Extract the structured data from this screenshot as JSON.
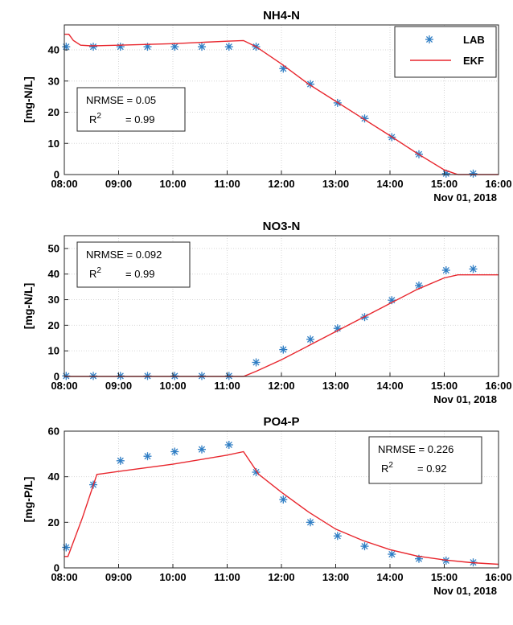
{
  "chart_data": [
    {
      "type": "line",
      "title": "NH4-N",
      "ylabel": "[mg-N/L]",
      "date_label": "Nov 01, 2018",
      "xlim": [
        "08:00",
        "16:00"
      ],
      "ylim": [
        0,
        48
      ],
      "x_ticks": [
        "08:00",
        "09:00",
        "10:00",
        "11:00",
        "12:00",
        "13:00",
        "14:00",
        "15:00",
        "16:00"
      ],
      "y_ticks": [
        "0",
        "10",
        "20",
        "30",
        "40"
      ],
      "grid": true,
      "legend": {
        "position": "top-right",
        "entries": [
          "LAB",
          "EKF"
        ]
      },
      "stats": {
        "nrmse": "NRMSE = 0.05",
        "r2_label": "R",
        "r2_sup": "2",
        "r2_value": "= 0.99"
      },
      "series": [
        {
          "name": "LAB",
          "style": "markers",
          "color": "#2e7dc4",
          "points": [
            [
              "08:02",
              41
            ],
            [
              "08:32",
              41
            ],
            [
              "09:02",
              41
            ],
            [
              "09:32",
              41
            ],
            [
              "10:02",
              41
            ],
            [
              "10:32",
              41
            ],
            [
              "11:02",
              41
            ],
            [
              "11:32",
              41
            ],
            [
              "12:02",
              34
            ],
            [
              "12:32",
              29
            ],
            [
              "13:02",
              23
            ],
            [
              "13:32",
              18
            ],
            [
              "14:02",
              12
            ],
            [
              "14:32",
              6.5
            ],
            [
              "15:02",
              0.3
            ],
            [
              "15:32",
              0.3
            ]
          ]
        },
        {
          "name": "EKF",
          "style": "line",
          "color": "#e8262d",
          "points": [
            [
              "08:00",
              45
            ],
            [
              "08:05",
              45
            ],
            [
              "08:10",
              43
            ],
            [
              "08:18",
              41.5
            ],
            [
              "08:30",
              41.3
            ],
            [
              "09:00",
              41.5
            ],
            [
              "10:00",
              42
            ],
            [
              "11:00",
              42.8
            ],
            [
              "11:18",
              43
            ],
            [
              "11:32",
              41
            ],
            [
              "12:00",
              35.5
            ],
            [
              "12:30",
              29
            ],
            [
              "13:00",
              23.5
            ],
            [
              "13:30",
              18
            ],
            [
              "14:00",
              12.5
            ],
            [
              "14:30",
              6.8
            ],
            [
              "15:00",
              1.5
            ],
            [
              "15:15",
              0
            ],
            [
              "16:00",
              0
            ]
          ]
        }
      ]
    },
    {
      "type": "line",
      "title": "NO3-N",
      "ylabel": "[mg-N/L]",
      "date_label": "Nov 01, 2018",
      "xlim": [
        "08:00",
        "16:00"
      ],
      "ylim": [
        0,
        55
      ],
      "x_ticks": [
        "08:00",
        "09:00",
        "10:00",
        "11:00",
        "12:00",
        "13:00",
        "14:00",
        "15:00",
        "16:00"
      ],
      "y_ticks": [
        "0",
        "10",
        "20",
        "30",
        "40",
        "50"
      ],
      "grid": true,
      "stats": {
        "nrmse": "NRMSE = 0.092",
        "r2_label": "R",
        "r2_sup": "2",
        "r2_value": "= 0.99"
      },
      "series": [
        {
          "name": "LAB",
          "style": "markers",
          "color": "#2e7dc4",
          "points": [
            [
              "08:02",
              0.2
            ],
            [
              "08:32",
              0.2
            ],
            [
              "09:02",
              0.2
            ],
            [
              "09:32",
              0.2
            ],
            [
              "10:02",
              0.2
            ],
            [
              "10:32",
              0.2
            ],
            [
              "11:02",
              0.2
            ],
            [
              "11:32",
              5.5
            ],
            [
              "12:02",
              10.5
            ],
            [
              "12:32",
              14.5
            ],
            [
              "13:02",
              18.8
            ],
            [
              "13:32",
              23.2
            ],
            [
              "14:02",
              29.8
            ],
            [
              "14:32",
              35.5
            ],
            [
              "15:02",
              41.5
            ],
            [
              "15:32",
              42
            ]
          ]
        },
        {
          "name": "EKF",
          "style": "line",
          "color": "#e8262d",
          "points": [
            [
              "08:00",
              0
            ],
            [
              "11:18",
              0
            ],
            [
              "11:32",
              2
            ],
            [
              "12:00",
              6.5
            ],
            [
              "12:30",
              12
            ],
            [
              "13:00",
              17.5
            ],
            [
              "13:30",
              23
            ],
            [
              "14:00",
              28.5
            ],
            [
              "14:30",
              34
            ],
            [
              "15:00",
              38.5
            ],
            [
              "15:15",
              39.7
            ],
            [
              "16:00",
              39.7
            ]
          ]
        }
      ]
    },
    {
      "type": "line",
      "title": "PO4-P",
      "ylabel": "[mg-P/L]",
      "date_label": "Nov 01, 2018",
      "xlim": [
        "08:00",
        "16:00"
      ],
      "ylim": [
        0,
        60
      ],
      "x_ticks": [
        "08:00",
        "09:00",
        "10:00",
        "11:00",
        "12:00",
        "13:00",
        "14:00",
        "15:00",
        "16:00"
      ],
      "y_ticks": [
        "0",
        "20",
        "40",
        "60"
      ],
      "grid": true,
      "stats": {
        "nrmse": "NRMSE = 0.226",
        "r2_label": "R",
        "r2_sup": "2",
        "r2_value": "= 0.92"
      },
      "series": [
        {
          "name": "LAB",
          "style": "markers",
          "color": "#2e7dc4",
          "points": [
            [
              "08:02",
              9
            ],
            [
              "08:32",
              36.5
            ],
            [
              "09:02",
              47
            ],
            [
              "09:32",
              49
            ],
            [
              "10:02",
              51
            ],
            [
              "10:32",
              52
            ],
            [
              "11:02",
              54
            ],
            [
              "11:32",
              42
            ],
            [
              "12:02",
              30
            ],
            [
              "12:32",
              20
            ],
            [
              "13:02",
              14
            ],
            [
              "13:32",
              9.5
            ],
            [
              "14:02",
              6
            ],
            [
              "14:32",
              4
            ],
            [
              "15:02",
              3.2
            ],
            [
              "15:32",
              2.4
            ]
          ]
        },
        {
          "name": "EKF",
          "style": "line",
          "color": "#e8262d",
          "points": [
            [
              "08:00",
              5
            ],
            [
              "08:04",
              5
            ],
            [
              "08:20",
              22
            ],
            [
              "08:36",
              41
            ],
            [
              "09:00",
              42.3
            ],
            [
              "10:00",
              45.5
            ],
            [
              "11:00",
              49.5
            ],
            [
              "11:18",
              51
            ],
            [
              "11:35",
              41
            ],
            [
              "12:00",
              33.2
            ],
            [
              "12:30",
              24.5
            ],
            [
              "13:00",
              17
            ],
            [
              "13:30",
              12
            ],
            [
              "14:00",
              8
            ],
            [
              "14:30",
              5.2
            ],
            [
              "15:00",
              3.5
            ],
            [
              "15:30",
              2.3
            ],
            [
              "16:00",
              1.6
            ]
          ]
        }
      ]
    }
  ]
}
